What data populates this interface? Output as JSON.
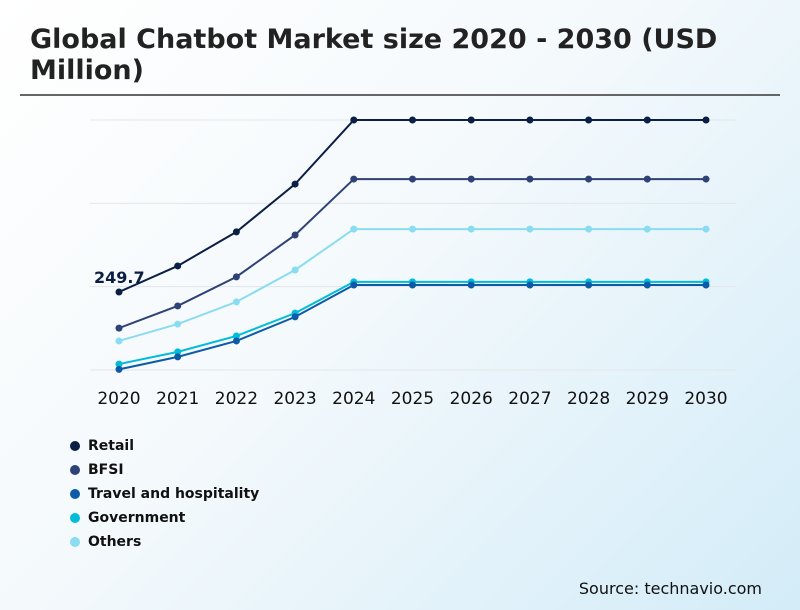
{
  "chart_data": {
    "type": "line",
    "title": "Global Chatbot Market size 2020 - 2030 (USD Million)",
    "categories": [
      "2020",
      "2021",
      "2022",
      "2023",
      "2024",
      "2025",
      "2026",
      "2027",
      "2028",
      "2029",
      "2030"
    ],
    "ylim": [
      0,
      800
    ],
    "grid": true,
    "legend": "bottom-left",
    "data_labels": [
      {
        "series": "Retail",
        "category": "2020",
        "text": "249.7"
      }
    ],
    "series": [
      {
        "name": "Retail",
        "color": "#0b1f45",
        "values": [
          249.7,
          333,
          442,
          595,
          800,
          800,
          800,
          800,
          800,
          800,
          800
        ]
      },
      {
        "name": "BFSI",
        "color": "#2f4275",
        "values": [
          134,
          205,
          298,
          432,
          611,
          611,
          611,
          611,
          611,
          611,
          611
        ]
      },
      {
        "name": "Travel and hospitality",
        "color": "#0d5aa7",
        "values": [
          2,
          42,
          93,
          170,
          272,
          272,
          272,
          272,
          272,
          272,
          272
        ]
      },
      {
        "name": "Government",
        "color": "#00bcd9",
        "values": [
          19,
          58,
          109,
          182,
          282,
          282,
          282,
          282,
          282,
          282,
          282
        ]
      },
      {
        "name": "Others",
        "color": "#8adcf0",
        "values": [
          93,
          147,
          218,
          320,
          451,
          451,
          451,
          451,
          451,
          451,
          451
        ]
      }
    ]
  },
  "source": "Source: technavio.com"
}
